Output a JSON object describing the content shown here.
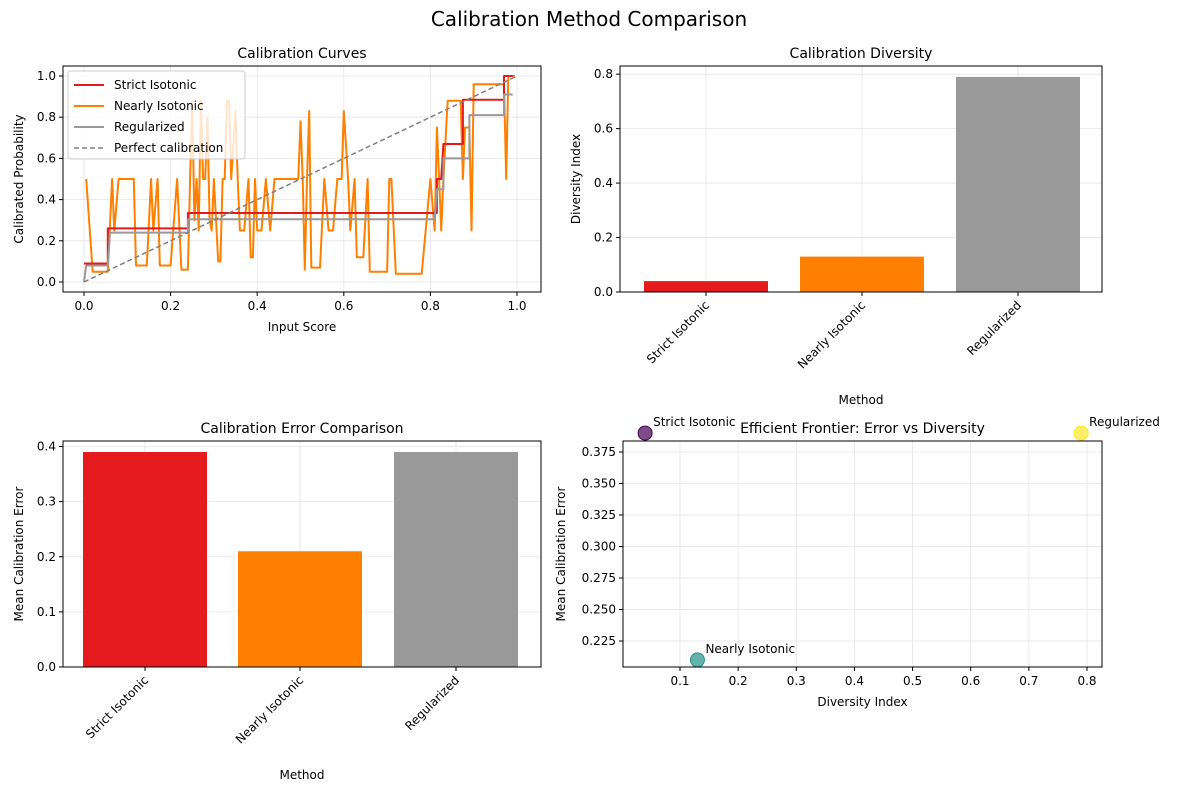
{
  "suptitle": "Calibration Method Comparison",
  "colors": {
    "strict": "#e41a1c",
    "nearly": "#ff7f00",
    "regularized": "#999999",
    "perfect": "#7f7f7f"
  },
  "chart_data": [
    {
      "type": "line",
      "title": "Calibration Curves",
      "xlabel": "Input Score",
      "ylabel": "Calibrated Probability",
      "xlim": [
        -0.05,
        1.05
      ],
      "ylim": [
        -0.05,
        1.05
      ],
      "xticks": [
        "0.0",
        "0.2",
        "0.4",
        "0.6",
        "0.8",
        "1.0"
      ],
      "yticks": [
        "0.0",
        "0.2",
        "0.4",
        "0.6",
        "0.8",
        "1.0"
      ],
      "grid": true,
      "legend": "top-left",
      "series": [
        {
          "name": "Strict Isotonic",
          "points": [
            [
              0,
              0.09
            ],
            [
              0.055,
              0.09
            ],
            [
              0.055,
              0.26
            ],
            [
              0.24,
              0.26
            ],
            [
              0.24,
              0.335
            ],
            [
              0.815,
              0.335
            ],
            [
              0.815,
              0.5
            ],
            [
              0.825,
              0.5
            ],
            [
              0.83,
              0.67
            ],
            [
              0.875,
              0.67
            ],
            [
              0.875,
              0.885
            ],
            [
              0.97,
              0.885
            ],
            [
              0.97,
              1.0
            ],
            [
              0.99,
              1.0
            ]
          ]
        },
        {
          "name": "Nearly Isotonic",
          "points": [
            [
              0.005,
              0.5
            ],
            [
              0.02,
              0.05
            ],
            [
              0.055,
              0.05
            ],
            [
              0.065,
              0.5
            ],
            [
              0.07,
              0.25
            ],
            [
              0.08,
              0.5
            ],
            [
              0.115,
              0.5
            ],
            [
              0.12,
              0.08
            ],
            [
              0.145,
              0.08
            ],
            [
              0.155,
              0.5
            ],
            [
              0.16,
              0.25
            ],
            [
              0.17,
              0.5
            ],
            [
              0.175,
              0.08
            ],
            [
              0.2,
              0.08
            ],
            [
              0.215,
              0.5
            ],
            [
              0.225,
              0.06
            ],
            [
              0.24,
              0.06
            ],
            [
              0.245,
              0.5
            ],
            [
              0.25,
              0.88
            ],
            [
              0.255,
              0.3
            ],
            [
              0.26,
              0.5
            ],
            [
              0.265,
              0.25
            ],
            [
              0.27,
              0.88
            ],
            [
              0.275,
              0.5
            ],
            [
              0.28,
              0.5
            ],
            [
              0.285,
              0.8
            ],
            [
              0.29,
              0.3
            ],
            [
              0.295,
              0.25
            ],
            [
              0.3,
              0.5
            ],
            [
              0.31,
              0.1
            ],
            [
              0.315,
              0.1
            ],
            [
              0.32,
              0.5
            ],
            [
              0.325,
              0.5
            ],
            [
              0.33,
              0.88
            ],
            [
              0.335,
              0.88
            ],
            [
              0.34,
              0.5
            ],
            [
              0.35,
              0.83
            ],
            [
              0.355,
              0.5
            ],
            [
              0.36,
              0.25
            ],
            [
              0.37,
              0.25
            ],
            [
              0.38,
              0.5
            ],
            [
              0.385,
              0.12
            ],
            [
              0.39,
              0.12
            ],
            [
              0.395,
              0.5
            ],
            [
              0.4,
              0.25
            ],
            [
              0.41,
              0.25
            ],
            [
              0.42,
              0.5
            ],
            [
              0.43,
              0.25
            ],
            [
              0.44,
              0.5
            ],
            [
              0.495,
              0.5
            ],
            [
              0.5,
              0.78
            ],
            [
              0.505,
              0.5
            ],
            [
              0.51,
              0.06
            ],
            [
              0.515,
              0.5
            ],
            [
              0.52,
              0.83
            ],
            [
              0.525,
              0.07
            ],
            [
              0.545,
              0.07
            ],
            [
              0.555,
              0.5
            ],
            [
              0.565,
              0.25
            ],
            [
              0.575,
              0.25
            ],
            [
              0.585,
              0.5
            ],
            [
              0.595,
              0.5
            ],
            [
              0.6,
              0.83
            ],
            [
              0.61,
              0.5
            ],
            [
              0.615,
              0.25
            ],
            [
              0.625,
              0.5
            ],
            [
              0.63,
              0.12
            ],
            [
              0.645,
              0.12
            ],
            [
              0.655,
              0.5
            ],
            [
              0.66,
              0.05
            ],
            [
              0.7,
              0.05
            ],
            [
              0.705,
              0.5
            ],
            [
              0.71,
              0.5
            ],
            [
              0.72,
              0.04
            ],
            [
              0.78,
              0.04
            ],
            [
              0.8,
              0.5
            ],
            [
              0.81,
              0.25
            ],
            [
              0.815,
              0.75
            ],
            [
              0.82,
              0.5
            ],
            [
              0.825,
              0.25
            ],
            [
              0.83,
              0.5
            ],
            [
              0.84,
              0.88
            ],
            [
              0.87,
              0.88
            ],
            [
              0.875,
              0.5
            ],
            [
              0.88,
              0.75
            ],
            [
              0.89,
              0.75
            ],
            [
              0.895,
              0.25
            ],
            [
              0.9,
              0.96
            ],
            [
              0.97,
              0.96
            ],
            [
              0.975,
              0.5
            ],
            [
              0.98,
              1.0
            ],
            [
              0.995,
              1.0
            ]
          ]
        },
        {
          "name": "Regularized",
          "points": [
            [
              0,
              0.0
            ],
            [
              0.005,
              0.08
            ],
            [
              0.055,
              0.08
            ],
            [
              0.06,
              0.24
            ],
            [
              0.24,
              0.24
            ],
            [
              0.24,
              0.305
            ],
            [
              0.81,
              0.305
            ],
            [
              0.815,
              0.45
            ],
            [
              0.83,
              0.45
            ],
            [
              0.83,
              0.6
            ],
            [
              0.89,
              0.6
            ],
            [
              0.89,
              0.81
            ],
            [
              0.97,
              0.81
            ],
            [
              0.97,
              0.91
            ],
            [
              0.99,
              0.91
            ]
          ]
        },
        {
          "name": "Perfect calibration",
          "points": [
            [
              0,
              0
            ],
            [
              1,
              1
            ]
          ]
        }
      ]
    },
    {
      "type": "bar",
      "title": "Calibration Diversity",
      "xlabel": "Method",
      "ylabel": "Diversity Index",
      "categories": [
        "Strict Isotonic",
        "Nearly Isotonic",
        "Regularized"
      ],
      "values": [
        0.04,
        0.13,
        0.79
      ],
      "ylim": [
        0,
        0.83
      ],
      "yticks": [
        "0.0",
        "0.2",
        "0.4",
        "0.6",
        "0.8"
      ],
      "grid": true
    },
    {
      "type": "bar",
      "title": "Calibration Error Comparison",
      "xlabel": "Method",
      "ylabel": "Mean Calibration Error",
      "categories": [
        "Strict Isotonic",
        "Nearly Isotonic",
        "Regularized"
      ],
      "values": [
        0.39,
        0.21,
        0.39
      ],
      "ylim": [
        0,
        0.41
      ],
      "yticks": [
        "0.0",
        "0.1",
        "0.2",
        "0.3",
        "0.4"
      ],
      "grid": true
    },
    {
      "type": "scatter",
      "title": "Efficient Frontier: Error vs Diversity",
      "xlabel": "Diversity Index",
      "ylabel": "Mean Calibration Error",
      "points": [
        {
          "label": "Strict Isotonic",
          "x": 0.04,
          "y": 0.39,
          "color": "#440154"
        },
        {
          "label": "Nearly Isotonic",
          "x": 0.13,
          "y": 0.21,
          "color": "#21918c"
        },
        {
          "label": "Regularized",
          "x": 0.79,
          "y": 0.39,
          "color": "#fde725"
        }
      ],
      "xticks": [
        "0.1",
        "0.2",
        "0.3",
        "0.4",
        "0.5",
        "0.6",
        "0.7",
        "0.8"
      ],
      "yticks": [
        "0.225",
        "0.250",
        "0.275",
        "0.300",
        "0.325",
        "0.350",
        "0.375"
      ],
      "grid": true
    }
  ]
}
